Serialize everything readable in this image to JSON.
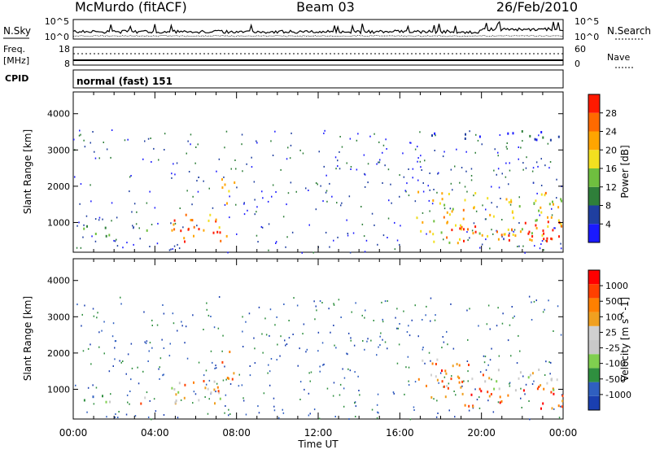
{
  "header": {
    "station": "McMurdo (fitACF)",
    "beam": "Beam 03",
    "date": "26/Feb/2010"
  },
  "top_panels": {
    "nsky_label": "N.Sky",
    "nsky_ticks": [
      "10^5",
      "10^0"
    ],
    "nsearch_label": "N.Search",
    "nsearch_ticks": [
      "10^5",
      "10^0"
    ],
    "freq_label_1": "Freq.",
    "freq_label_2": "[MHz]",
    "freq_ticks": [
      "18",
      "8"
    ],
    "nave_label": "Nave",
    "nave_ticks": [
      "60",
      "0"
    ],
    "cpid_label": "CPID",
    "cpid_text": "normal (fast) 151"
  },
  "colors": {
    "power_scale": [
      "#1a1aff",
      "#1f3fa0",
      "#2f7f3a",
      "#6fbf3f",
      "#f2e020",
      "#ffa500",
      "#ff6a00",
      "#ff1a00"
    ],
    "velocity_scale": [
      "#1a3fb0",
      "#2f5fc0",
      "#2f8f3f",
      "#7fcf4f",
      "#c8c8c8",
      "#d0d0d0",
      "#f0a020",
      "#ff8000",
      "#ff4000",
      "#ff0000"
    ]
  },
  "chart_data": [
    {
      "type": "heatmap",
      "name": "power",
      "xlabel": "",
      "ylabel": "Slant Range [km]",
      "ylim": [
        180,
        4600
      ],
      "yticks": [
        1000,
        2000,
        3000,
        4000
      ],
      "colorbar_label": "Power [dB]",
      "colorbar_ticks": [
        "28",
        "24",
        "20",
        "16",
        "12",
        "8",
        "4"
      ],
      "regions": [
        {
          "t0": 0.0,
          "t1": 1.8,
          "r0": 600,
          "r1": 1000,
          "level": 0.35
        },
        {
          "t0": 3.1,
          "t1": 3.6,
          "r0": 550,
          "r1": 850,
          "level": 0.6
        },
        {
          "t0": 4.8,
          "t1": 7.5,
          "r0": 500,
          "r1": 1300,
          "level": 0.75
        },
        {
          "t0": 5.2,
          "t1": 7.2,
          "r0": 700,
          "r1": 1200,
          "level": 0.95
        },
        {
          "t0": 7.2,
          "t1": 7.9,
          "r0": 1200,
          "r1": 2300,
          "level": 0.55
        },
        {
          "t0": 16.8,
          "t1": 24.0,
          "r0": 450,
          "r1": 1900,
          "level": 0.6
        },
        {
          "t0": 18.5,
          "t1": 24.0,
          "r0": 500,
          "r1": 1100,
          "level": 0.95
        },
        {
          "t0": 16.8,
          "t1": 24.0,
          "r0": 3300,
          "r1": 3550,
          "level": 0.15
        }
      ]
    },
    {
      "type": "heatmap",
      "name": "velocity",
      "xlabel": "Time UT",
      "ylabel": "Slant Range [km]",
      "ylim": [
        180,
        4600
      ],
      "yticks": [
        1000,
        2000,
        3000,
        4000
      ],
      "xticks": [
        "00:00",
        "04:00",
        "08:00",
        "12:00",
        "16:00",
        "20:00",
        "00:00"
      ],
      "colorbar_label": "Velocity [m s^-1]",
      "colorbar_ticks": [
        "1000",
        "500",
        "100",
        "25",
        "-25",
        "-100",
        "-500",
        "-1000"
      ],
      "regions": [
        {
          "t0": 0.0,
          "t1": 1.8,
          "r0": 600,
          "r1": 900,
          "level": 0.3
        },
        {
          "t0": 3.1,
          "t1": 3.6,
          "r0": 500,
          "r1": 900,
          "level": 0.65
        },
        {
          "t0": 4.8,
          "t1": 7.5,
          "r0": 600,
          "r1": 1300,
          "level": 0.55
        },
        {
          "t0": 5.0,
          "t1": 7.2,
          "r0": 900,
          "r1": 1300,
          "level": 0.7
        },
        {
          "t0": 7.2,
          "t1": 7.9,
          "r0": 1300,
          "r1": 2300,
          "level": 0.7
        },
        {
          "t0": 16.8,
          "t1": 20.5,
          "r0": 800,
          "r1": 1900,
          "level": 0.75
        },
        {
          "t0": 19.0,
          "t1": 24.0,
          "r0": 500,
          "r1": 1100,
          "level": 0.8
        },
        {
          "t0": 20.0,
          "t1": 24.0,
          "r0": 1000,
          "r1": 1600,
          "level": 0.48
        }
      ]
    }
  ]
}
